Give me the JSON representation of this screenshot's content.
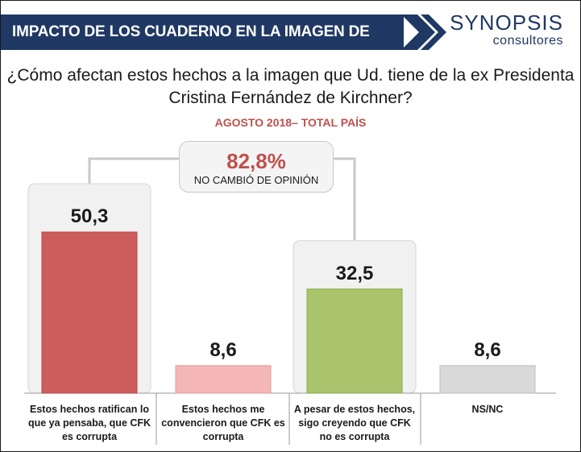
{
  "header": {
    "title": "IMPACTO DE LOS CUADERNO EN LA IMAGEN DE CFK",
    "logo_main": "SYNOPSIS",
    "logo_sub": "consultores"
  },
  "question": {
    "line1": "¿Cómo afectan estos hechos a la imagen que Ud. tiene de la ex Presidenta",
    "line2": "Cristina Fernández de Kirchner?"
  },
  "callout": {
    "value": "82,8%",
    "label": "NO CAMBIÓ DE OPINIÓN"
  },
  "colors": {
    "banner": "#1f3864",
    "accent": "#c0504d",
    "bar_red": "#cd5c5c",
    "bar_pink": "#f4b6b6",
    "bar_green": "#a9c46a",
    "bar_gray": "#d9d9d9"
  },
  "chart_data": {
    "type": "bar",
    "title": "AGOSTO 2018– TOTAL PAÍS",
    "categories": [
      [
        "Estos hechos ratifican lo",
        "que ya pensaba, que CFK",
        "es corrupta"
      ],
      [
        "Estos hechos me",
        "convencieron que CFK es",
        "corrupta"
      ],
      [
        "A pesar de estos hechos,",
        "sigo creyendo que CFK",
        "no es corrupta"
      ],
      [
        "NS/NC"
      ]
    ],
    "values": [
      50.3,
      8.6,
      32.5,
      8.6
    ],
    "value_labels": [
      "50,3",
      "8,6",
      "32,5",
      "8,6"
    ],
    "highlighted": [
      0,
      2
    ],
    "ylim": [
      0,
      60
    ]
  }
}
